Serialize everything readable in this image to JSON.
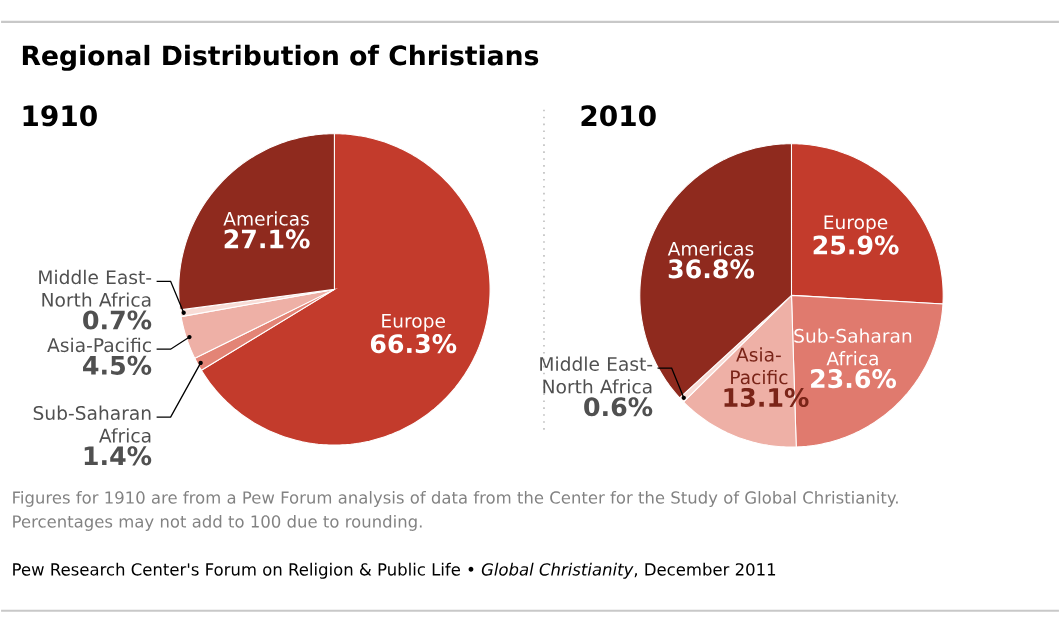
{
  "chart_data": [
    {
      "type": "pie",
      "title": "Regional Distribution of Christians",
      "subtitle": "1910",
      "categories": [
        "Europe",
        "Sub-Saharan Africa",
        "Asia-Pacific",
        "Middle East-North Africa",
        "Americas"
      ],
      "values": [
        66.3,
        1.4,
        4.5,
        0.7,
        27.1
      ],
      "colors": [
        "#c33b2c",
        "#e38476",
        "#eeb0a6",
        "#f8dcd6",
        "#8f2a1e"
      ],
      "value_labels": [
        "66.3%",
        "1.4%",
        "4.5%",
        "0.7%",
        "27.1%"
      ],
      "annotations": [
        "Figures for 1910 are from a Pew Forum analysis of data from the Center for the Study of Global Christianity.",
        "Percentages may not add to 100 due to rounding.",
        "Pew Research Center's Forum on Religion & Public Life • *Global Christianity*, December 2011"
      ]
    },
    {
      "type": "pie",
      "subtitle": "2010",
      "categories": [
        "Europe",
        "Sub-Saharan Africa",
        "Asia-Pacific",
        "Middle East-North Africa",
        "Americas"
      ],
      "values": [
        25.9,
        23.6,
        13.1,
        0.6,
        36.8
      ],
      "colors": [
        "#c33b2c",
        "#e07a6e",
        "#eeb0a6",
        "#f8dcd6",
        "#8f2a1e"
      ],
      "value_labels": [
        "25.9%",
        "23.6%",
        "13.1%",
        "0.6%",
        "36.8%"
      ]
    }
  ]
}
